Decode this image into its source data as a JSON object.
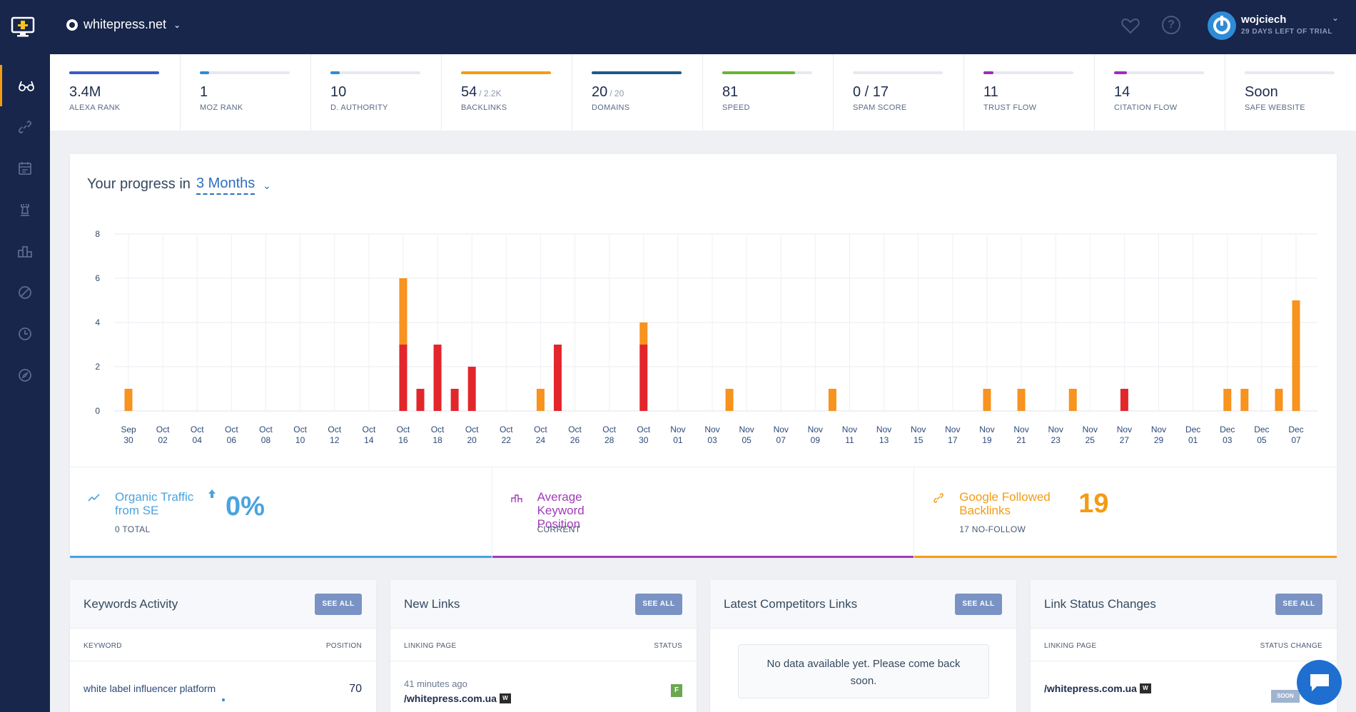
{
  "header": {
    "site": "whitepress.net",
    "user_name": "wojciech",
    "trial_text": "29 DAYS LEFT OF TRIAL"
  },
  "sidebar": {
    "items": [
      "glasses-icon",
      "link-icon",
      "calendar-icon",
      "chess-rook-icon",
      "podium-icon",
      "ban-icon",
      "clock-icon",
      "compass-icon"
    ],
    "active": "glasses-icon",
    "accent": "#f39c12"
  },
  "metrics": [
    {
      "value": "3.4M",
      "sub": "",
      "label": "ALEXA RANK",
      "progress": 1.0,
      "color": "#3a5bc7"
    },
    {
      "value": "1",
      "sub": "",
      "label": "MOZ RANK",
      "progress": 0.1,
      "color": "#2e8bd8"
    },
    {
      "value": "10",
      "sub": "",
      "label": "D. AUTHORITY",
      "progress": 0.1,
      "color": "#2e8bd8"
    },
    {
      "value": "54",
      "sub": "/ 2.2K",
      "label": "BACKLINKS",
      "progress": 1.0,
      "color": "#f39c12"
    },
    {
      "value": "20",
      "sub": "/ 20",
      "label": "DOMAINS",
      "progress": 1.0,
      "color": "#1e5a8a"
    },
    {
      "value": "81",
      "sub": "",
      "label": "SPEED",
      "progress": 0.81,
      "color": "#6ab333"
    },
    {
      "value": "0 / 17",
      "sub": "",
      "label": "SPAM SCORE",
      "progress": 0.0,
      "color": "#e74c3c"
    },
    {
      "value": "11",
      "sub": "",
      "label": "TRUST FLOW",
      "progress": 0.11,
      "color": "#9b30b6"
    },
    {
      "value": "14",
      "sub": "",
      "label": "CITATION FLOW",
      "progress": 0.14,
      "color": "#9b30b6"
    },
    {
      "value": "Soon",
      "sub": "",
      "label": "SAFE WEBSITE",
      "progress": 0.0,
      "color": "#cccccc"
    }
  ],
  "progress": {
    "title": "Your progress in",
    "period": "3 Months"
  },
  "chart_data": {
    "type": "bar",
    "stacked": true,
    "ylim": [
      0,
      8
    ],
    "yticks": [
      0,
      2,
      4,
      6,
      8
    ],
    "categories": [
      "Sep 30",
      "Oct 01",
      "Oct 02",
      "Oct 03",
      "Oct 04",
      "Oct 05",
      "Oct 06",
      "Oct 07",
      "Oct 08",
      "Oct 09",
      "Oct 10",
      "Oct 11",
      "Oct 12",
      "Oct 13",
      "Oct 14",
      "Oct 15",
      "Oct 16",
      "Oct 17",
      "Oct 18",
      "Oct 19",
      "Oct 20",
      "Oct 21",
      "Oct 22",
      "Oct 23",
      "Oct 24",
      "Oct 25",
      "Oct 26",
      "Oct 27",
      "Oct 28",
      "Oct 29",
      "Oct 30",
      "Oct 31",
      "Nov 01",
      "Nov 02",
      "Nov 03",
      "Nov 04",
      "Nov 05",
      "Nov 06",
      "Nov 07",
      "Nov 08",
      "Nov 09",
      "Nov 10",
      "Nov 11",
      "Nov 12",
      "Nov 13",
      "Nov 14",
      "Nov 15",
      "Nov 16",
      "Nov 17",
      "Nov 18",
      "Nov 19",
      "Nov 20",
      "Nov 21",
      "Nov 22",
      "Nov 23",
      "Nov 24",
      "Nov 25",
      "Nov 26",
      "Nov 27",
      "Nov 28",
      "Nov 29",
      "Nov 30",
      "Dec 01",
      "Dec 02",
      "Dec 03",
      "Dec 04",
      "Dec 05",
      "Dec 06",
      "Dec 07"
    ],
    "tick_labels": [
      "Sep 30",
      "Oct 02",
      "Oct 04",
      "Oct 06",
      "Oct 08",
      "Oct 10",
      "Oct 12",
      "Oct 14",
      "Oct 16",
      "Oct 18",
      "Oct 20",
      "Oct 22",
      "Oct 24",
      "Oct 26",
      "Oct 28",
      "Oct 30",
      "Nov 01",
      "Nov 03",
      "Nov 05",
      "Nov 07",
      "Nov 09",
      "Nov 11",
      "Nov 13",
      "Nov 15",
      "Nov 17",
      "Nov 19",
      "Nov 21",
      "Nov 23",
      "Nov 25",
      "Nov 27",
      "Nov 29",
      "Dec 01",
      "Dec 03",
      "Dec 05",
      "Dec 07"
    ],
    "series": [
      {
        "color": "#e3262c",
        "values": [
          0,
          0,
          0,
          0,
          0,
          0,
          0,
          0,
          0,
          0,
          0,
          0,
          0,
          0,
          0,
          0,
          3,
          1,
          3,
          1,
          2,
          0,
          0,
          0,
          0,
          3,
          0,
          0,
          0,
          0,
          3,
          0,
          0,
          0,
          0,
          0,
          0,
          0,
          0,
          0,
          0,
          0,
          0,
          0,
          0,
          0,
          0,
          0,
          0,
          0,
          0,
          0,
          0,
          0,
          0,
          0,
          0,
          0,
          1,
          0,
          0,
          0,
          0,
          0,
          0,
          0,
          0,
          0,
          0
        ]
      },
      {
        "color": "#f7931e",
        "values": [
          1,
          0,
          0,
          0,
          0,
          0,
          0,
          0,
          0,
          0,
          0,
          0,
          0,
          0,
          0,
          0,
          3,
          0,
          0,
          0,
          0,
          0,
          0,
          0,
          1,
          0,
          0,
          0,
          0,
          0,
          1,
          0,
          0,
          0,
          0,
          1,
          0,
          0,
          0,
          0,
          0,
          1,
          0,
          0,
          0,
          0,
          0,
          0,
          0,
          0,
          1,
          0,
          1,
          0,
          0,
          1,
          0,
          0,
          0,
          0,
          0,
          0,
          0,
          0,
          1,
          1,
          0,
          1,
          5
        ]
      }
    ],
    "grid": true
  },
  "stats": [
    {
      "title": "Organic Traffic from SE",
      "value": "0%",
      "sub": "0 TOTAL",
      "color": "#4aa3e0",
      "icon": "trend-icon"
    },
    {
      "title": "Average Keyword Position",
      "value": "",
      "sub": "CURRENT",
      "color": "#a23bb8",
      "icon": "podium-icon"
    },
    {
      "title": "Google Followed Backlinks",
      "value": "19",
      "sub": "17 NO-FOLLOW",
      "color": "#f39c12",
      "icon": "link-icon"
    }
  ],
  "cards": {
    "keywords": {
      "title": "Keywords Activity",
      "button": "SEE ALL",
      "col_left": "KEYWORD",
      "col_right": "POSITION",
      "row_keyword": "white label influencer platform",
      "row_position": "70"
    },
    "new_links": {
      "title": "New Links",
      "button": "SEE ALL",
      "col_left": "LINKING PAGE",
      "col_right": "STATUS",
      "row_time": "41 minutes ago",
      "row_page": "/whitepress.com.ua",
      "row_status": "F"
    },
    "competitors": {
      "title": "Latest Competitors Links",
      "button": "SEE ALL",
      "empty": "No data available yet. Please come back soon."
    },
    "status_changes": {
      "title": "Link Status Changes",
      "button": "SEE ALL",
      "col_left": "LINKING PAGE",
      "col_right": "STATUS CHANGE",
      "row_page": "/whitepress.com.ua",
      "row_status": "SOON"
    }
  }
}
